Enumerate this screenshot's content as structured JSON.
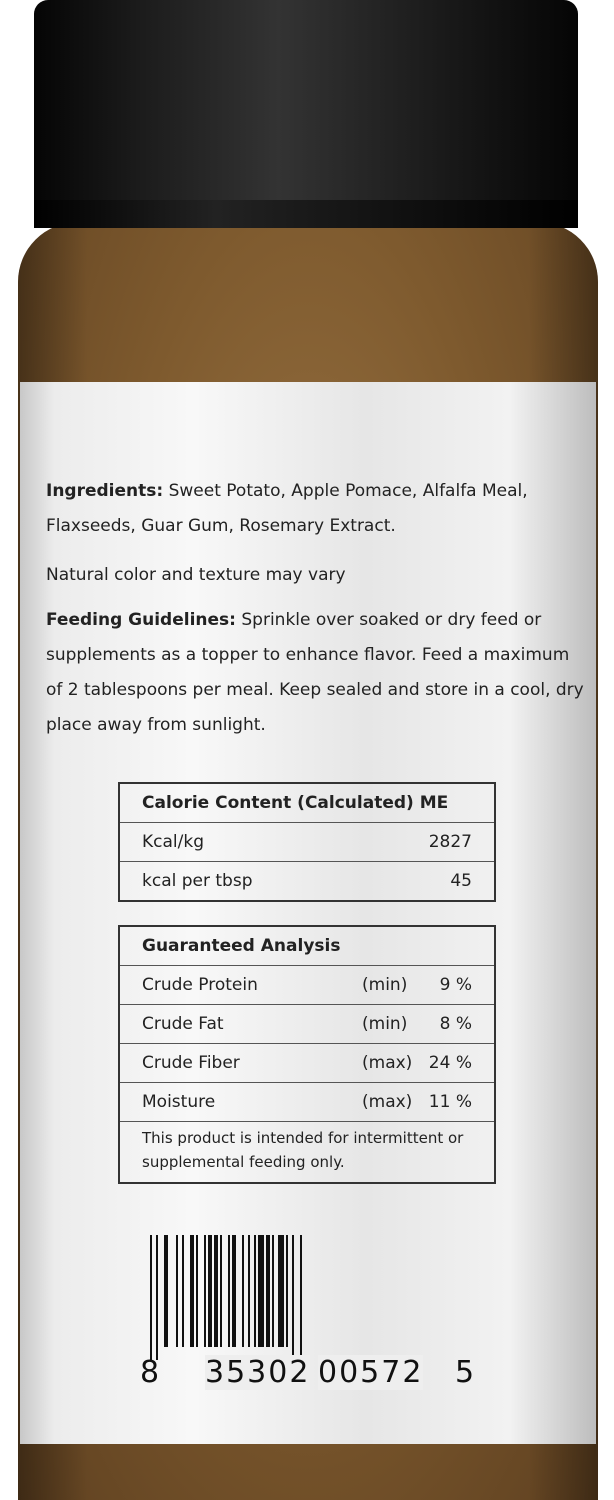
{
  "ingredients": {
    "heading": "Ingredients:",
    "text": "Sweet Potato, Apple Pomace, Alfalfa Meal, Flaxseeds, Guar Gum, Rosemary Extract."
  },
  "note": "Natural color and texture may vary",
  "feeding": {
    "heading": "Feeding Guidelines:",
    "text": "Sprinkle over soaked or dry feed or supplements as a topper to enhance flavor. Feed a maximum of 2 tablespoons per meal. Keep sealed and store in a cool, dry place away from sunlight."
  },
  "calorie": {
    "title": "Calorie Content (Calculated) ME",
    "rows": [
      {
        "name": "Kcal/kg",
        "value": "2827"
      },
      {
        "name": "kcal per tbsp",
        "value": "45"
      }
    ]
  },
  "analysis": {
    "title": "Guaranteed Analysis",
    "rows": [
      {
        "name": "Crude Protein",
        "qual": "(min)",
        "value": "9 %"
      },
      {
        "name": "Crude Fat",
        "qual": "(min)",
        "value": "8 %"
      },
      {
        "name": "Crude Fiber",
        "qual": "(max)",
        "value": "24 %"
      },
      {
        "name": "Moisture",
        "qual": "(max)",
        "value": "11 %"
      }
    ],
    "note": "This product is intended for intermittent or supplemental feeding only."
  },
  "barcode": {
    "first": "8",
    "left": "35302",
    "right": "00572",
    "last": "5"
  },
  "colors": {
    "cap": "#111111",
    "powder": "#7e5a2e",
    "label": "#f2f2f2"
  }
}
